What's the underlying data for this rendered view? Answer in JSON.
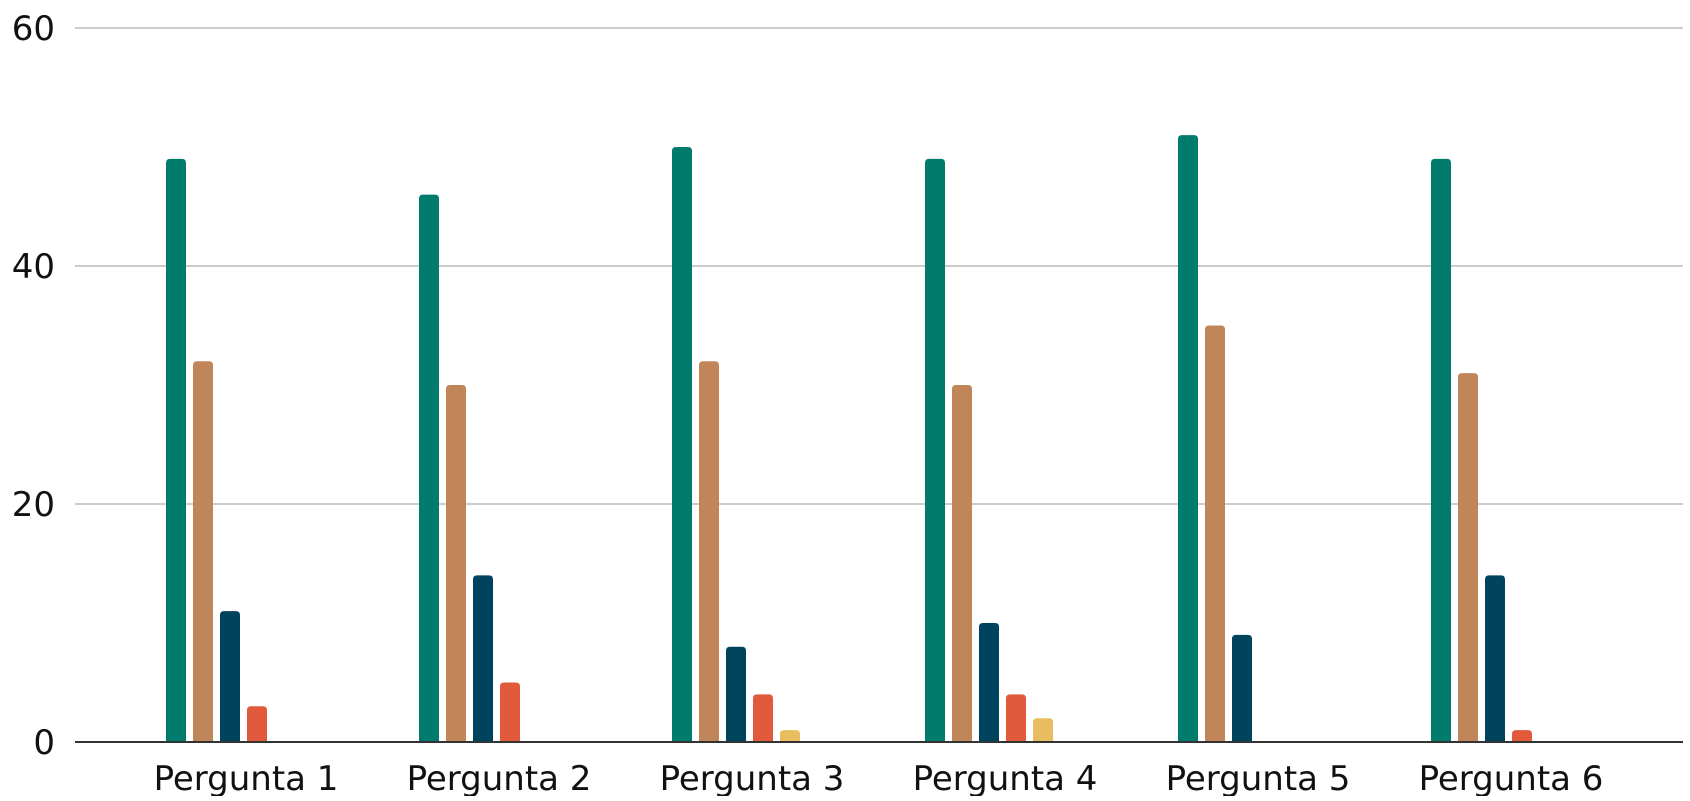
{
  "chart_data": {
    "type": "bar",
    "categories": [
      "Pergunta 1",
      "Pergunta 2",
      "Pergunta 3",
      "Pergunta 4",
      "Pergunta 5",
      "Pergunta 6"
    ],
    "series": [
      {
        "color": "#007b6c",
        "values": [
          49,
          46,
          50,
          49,
          51,
          49
        ]
      },
      {
        "color": "#c0865a",
        "values": [
          32,
          30,
          32,
          30,
          35,
          31
        ]
      },
      {
        "color": "#00435f",
        "values": [
          11,
          14,
          8,
          10,
          9,
          14
        ]
      },
      {
        "color": "#e05a3b",
        "values": [
          3,
          5,
          4,
          4,
          0,
          1
        ]
      },
      {
        "color": "#e9bd5f",
        "values": [
          0,
          0,
          1,
          2,
          0,
          0
        ]
      }
    ],
    "ylim": [
      0,
      60
    ],
    "yticks": [
      0,
      20,
      40,
      60
    ],
    "grid": true,
    "legend": "none",
    "title": "",
    "xlabel": "",
    "ylabel": ""
  }
}
